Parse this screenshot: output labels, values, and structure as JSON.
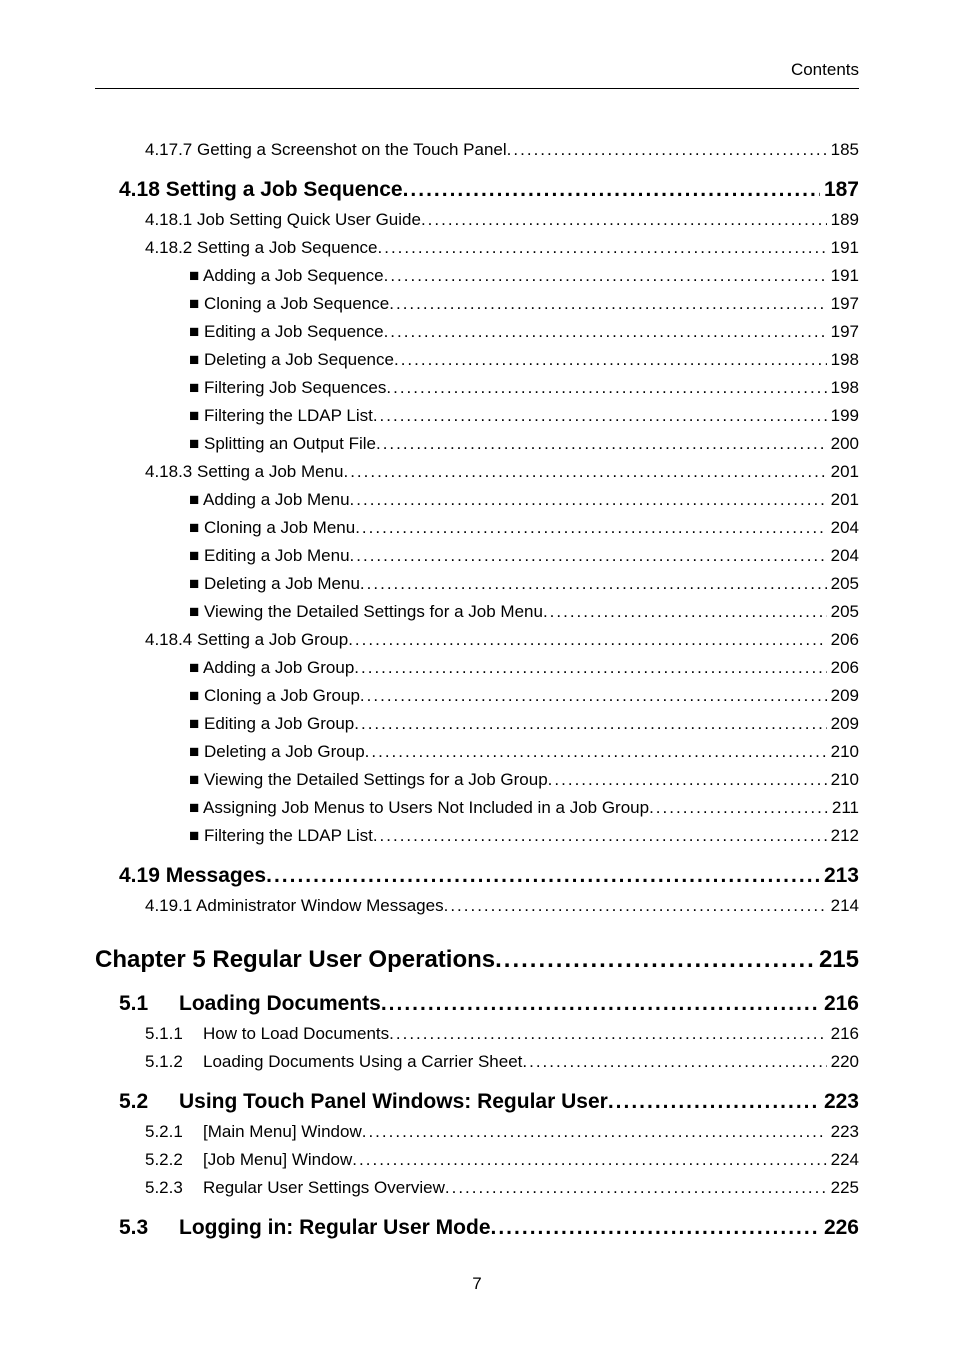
{
  "header": {
    "label": "Contents"
  },
  "footer": {
    "page": "7"
  },
  "toc": [
    {
      "cls": "lvl-sub",
      "label": "4.17.7  Getting a Screenshot on the Touch Panel ",
      "page": " 185"
    },
    {
      "cls": "lvl-sec",
      "label": "4.18  Setting a Job Sequence ",
      "page": " 187"
    },
    {
      "cls": "lvl-sub",
      "label": "4.18.1  Job Setting Quick User Guide ",
      "page": " 189"
    },
    {
      "cls": "lvl-sub",
      "label": "4.18.2  Setting a Job Sequence ",
      "page": " 191"
    },
    {
      "cls": "lvl-bullet",
      "label": "■ Adding a Job Sequence ",
      "page": " 191"
    },
    {
      "cls": "lvl-bullet",
      "label": "■ Cloning a Job Sequence ",
      "page": " 197"
    },
    {
      "cls": "lvl-bullet",
      "label": "■ Editing a Job Sequence ",
      "page": " 197"
    },
    {
      "cls": "lvl-bullet",
      "label": "■ Deleting a Job Sequence ",
      "page": " 198"
    },
    {
      "cls": "lvl-bullet",
      "label": "■ Filtering Job Sequences ",
      "page": " 198"
    },
    {
      "cls": "lvl-bullet",
      "label": "■ Filtering the LDAP List ",
      "page": " 199"
    },
    {
      "cls": "lvl-bullet",
      "label": "■ Splitting an Output File ",
      "page": " 200"
    },
    {
      "cls": "lvl-sub",
      "label": "4.18.3  Setting a Job Menu ",
      "page": " 201"
    },
    {
      "cls": "lvl-bullet",
      "label": "■ Adding a Job Menu ",
      "page": " 201"
    },
    {
      "cls": "lvl-bullet",
      "label": "■ Cloning a Job Menu ",
      "page": " 204"
    },
    {
      "cls": "lvl-bullet",
      "label": "■ Editing a Job Menu ",
      "page": " 204"
    },
    {
      "cls": "lvl-bullet",
      "label": "■ Deleting a Job Menu ",
      "page": " 205"
    },
    {
      "cls": "lvl-bullet",
      "label": "■ Viewing the Detailed Settings for a Job Menu ",
      "page": " 205"
    },
    {
      "cls": "lvl-sub",
      "label": "4.18.4  Setting a Job Group ",
      "page": " 206"
    },
    {
      "cls": "lvl-bullet",
      "label": "■ Adding a Job Group ",
      "page": " 206"
    },
    {
      "cls": "lvl-bullet",
      "label": "■ Cloning a Job Group ",
      "page": " 209"
    },
    {
      "cls": "lvl-bullet",
      "label": "■ Editing a Job Group ",
      "page": " 209"
    },
    {
      "cls": "lvl-bullet",
      "label": "■ Deleting a Job Group ",
      "page": " 210"
    },
    {
      "cls": "lvl-bullet",
      "label": "■ Viewing the Detailed Settings for a Job Group ",
      "page": " 210"
    },
    {
      "cls": "lvl-bullet",
      "label": "■ Assigning Job Menus to Users Not Included in a Job Group ",
      "page": " 211"
    },
    {
      "cls": "lvl-bullet",
      "label": "■ Filtering the LDAP List ",
      "page": " 212"
    },
    {
      "cls": "lvl-sec",
      "label": "4.19  Messages ",
      "page": " 213"
    },
    {
      "cls": "lvl-sub",
      "label": "4.19.1  Administrator Window Messages ",
      "page": " 214"
    },
    {
      "cls": "lvl-chapter",
      "label": "Chapter 5 Regular User Operations ",
      "page": " 215"
    },
    {
      "cls": "lvl-topsec",
      "num": "5.1",
      "label": "Loading Documents ",
      "page": " 216"
    },
    {
      "cls": "lvl-sub2",
      "num": "5.1.1",
      "label": "How to Load Documents ",
      "page": " 216"
    },
    {
      "cls": "lvl-sub2",
      "num": "5.1.2",
      "label": "Loading Documents Using a Carrier Sheet",
      "page": " 220"
    },
    {
      "cls": "lvl-topsec",
      "num": "5.2",
      "label": "Using Touch Panel Windows: Regular User ",
      "page": " 223"
    },
    {
      "cls": "lvl-sub2",
      "num": "5.2.1",
      "label": "[Main Menu] Window ",
      "page": " 223"
    },
    {
      "cls": "lvl-sub2",
      "num": "5.2.2",
      "label": "[Job Menu] Window ",
      "page": " 224"
    },
    {
      "cls": "lvl-sub2",
      "num": "5.2.3",
      "label": "Regular User Settings Overview ",
      "page": " 225"
    },
    {
      "cls": "lvl-topsec",
      "num": "5.3",
      "label": "Logging in: Regular User Mode ",
      "page": " 226"
    }
  ]
}
